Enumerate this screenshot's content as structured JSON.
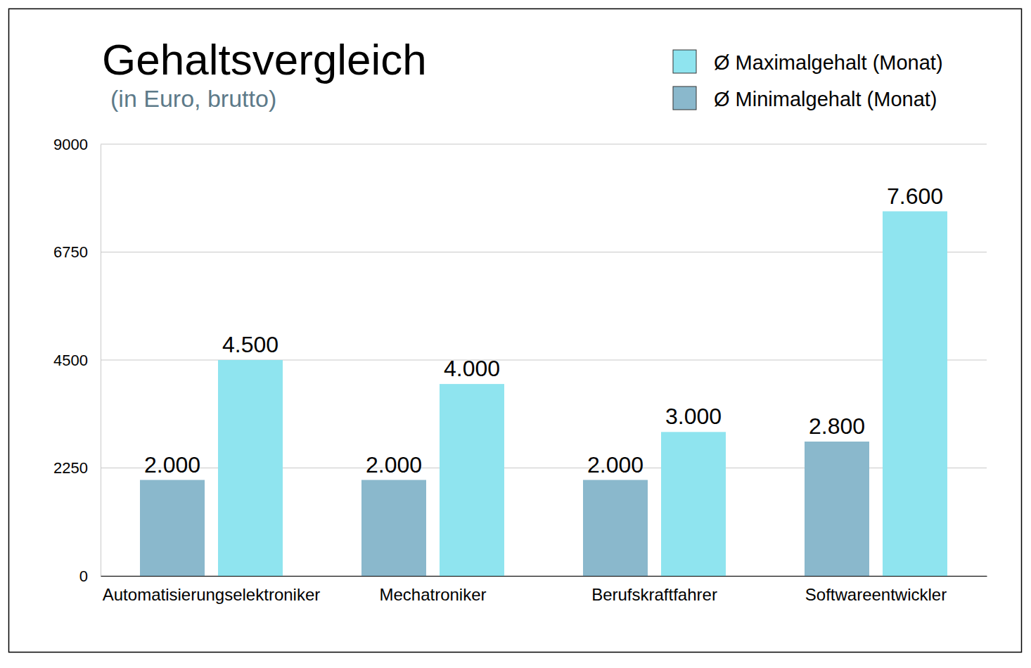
{
  "chart_data": {
    "type": "bar",
    "title": "Gehaltsvergleich",
    "subtitle": "(in Euro, brutto)",
    "categories": [
      "Automatisierungselektroniker",
      "Mechatroniker",
      "Berufskraftfahrer",
      "Softwareentwickler"
    ],
    "series": [
      {
        "name": "Ø Minimalgehalt (Monat)",
        "color": "#8ab8cc",
        "values": [
          2000,
          2000,
          2000,
          2800
        ],
        "value_labels": [
          "2.000",
          "2.000",
          "2.000",
          "2.800"
        ]
      },
      {
        "name": "Ø Maximalgehalt (Monat)",
        "color": "#8fe4ef",
        "values": [
          4500,
          4000,
          3000,
          7600
        ],
        "value_labels": [
          "4.500",
          "4.000",
          "3.000",
          "7.600"
        ]
      }
    ],
    "ylim": [
      0,
      9000
    ],
    "yticks": [
      0,
      2250,
      4500,
      6750,
      9000
    ],
    "grid": true,
    "legend": "top-right",
    "data_labels": true
  }
}
